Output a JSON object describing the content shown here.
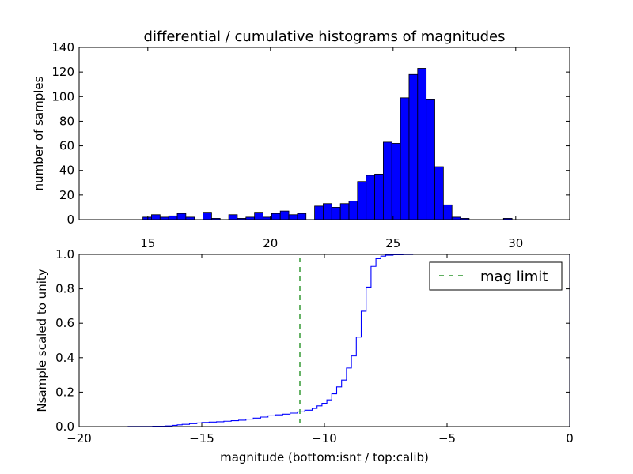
{
  "chart_data": [
    {
      "type": "bar",
      "title": "differential / cumulative histograms of magnitudes",
      "xlabel": "",
      "ylabel": "number of samples",
      "xlim": [
        12.2,
        32.2
      ],
      "ylim": [
        0,
        140
      ],
      "xticks": [
        "15",
        "20",
        "25",
        "30"
      ],
      "yticks": [
        "0",
        "20",
        "40",
        "60",
        "80",
        "100",
        "120",
        "140"
      ],
      "bar_color": "#0000ff",
      "bin_width": 0.35,
      "bins": [
        {
          "x": 14.8,
          "y": 2
        },
        {
          "x": 15.15,
          "y": 4
        },
        {
          "x": 15.5,
          "y": 2
        },
        {
          "x": 15.85,
          "y": 3
        },
        {
          "x": 16.2,
          "y": 5
        },
        {
          "x": 16.55,
          "y": 2
        },
        {
          "x": 17.25,
          "y": 6
        },
        {
          "x": 17.6,
          "y": 1
        },
        {
          "x": 18.3,
          "y": 4
        },
        {
          "x": 18.65,
          "y": 1
        },
        {
          "x": 19.0,
          "y": 2
        },
        {
          "x": 19.35,
          "y": 6
        },
        {
          "x": 19.7,
          "y": 2
        },
        {
          "x": 20.05,
          "y": 5
        },
        {
          "x": 20.4,
          "y": 7
        },
        {
          "x": 20.75,
          "y": 4
        },
        {
          "x": 21.1,
          "y": 5
        },
        {
          "x": 21.8,
          "y": 11
        },
        {
          "x": 22.15,
          "y": 13
        },
        {
          "x": 22.5,
          "y": 10
        },
        {
          "x": 22.85,
          "y": 13
        },
        {
          "x": 23.2,
          "y": 15
        },
        {
          "x": 23.55,
          "y": 31
        },
        {
          "x": 23.9,
          "y": 36
        },
        {
          "x": 24.25,
          "y": 37
        },
        {
          "x": 24.6,
          "y": 63
        },
        {
          "x": 24.95,
          "y": 62
        },
        {
          "x": 25.3,
          "y": 99
        },
        {
          "x": 25.65,
          "y": 118
        },
        {
          "x": 26.0,
          "y": 123
        },
        {
          "x": 26.35,
          "y": 98
        },
        {
          "x": 26.7,
          "y": 43
        },
        {
          "x": 27.05,
          "y": 12
        },
        {
          "x": 27.4,
          "y": 2
        },
        {
          "x": 27.75,
          "y": 1
        },
        {
          "x": 29.5,
          "y": 1
        }
      ]
    },
    {
      "type": "line",
      "xlabel": "magnitude (bottom:isnt / top:calib)",
      "ylabel": "Nsample scaled to unity",
      "xlim": [
        -20,
        0
      ],
      "ylim": [
        0.0,
        1.0
      ],
      "xticks": [
        "−20",
        "−15",
        "−10",
        "−5",
        "0"
      ],
      "yticks": [
        "0.0",
        "0.2",
        "0.4",
        "0.6",
        "0.8",
        "1.0"
      ],
      "line_color": "#0000ff",
      "limit_color": "#008000",
      "legend": {
        "entries": [
          "mag limit"
        ],
        "position": "upper right"
      },
      "mag_limit": -11.0,
      "series": [
        {
          "name": "",
          "x": [
            -20,
            -18.0,
            -17.0,
            -16.5,
            -16.2,
            -16.0,
            -15.8,
            -15.5,
            -15.2,
            -15.0,
            -14.7,
            -14.4,
            -14.1,
            -13.8,
            -13.5,
            -13.2,
            -12.9,
            -12.6,
            -12.3,
            -12.0,
            -11.7,
            -11.4,
            -11.1,
            -10.8,
            -10.5,
            -10.3,
            -10.1,
            -9.9,
            -9.7,
            -9.5,
            -9.3,
            -9.1,
            -8.9,
            -8.7,
            -8.5,
            -8.3,
            -8.1,
            -7.9,
            -7.7,
            -7.5,
            -7.2,
            -6.8,
            -6.4,
            -6.0,
            -0.05,
            0
          ],
          "y": [
            0.0,
            0.001,
            0.002,
            0.004,
            0.007,
            0.01,
            0.013,
            0.017,
            0.021,
            0.024,
            0.026,
            0.028,
            0.031,
            0.034,
            0.037,
            0.043,
            0.049,
            0.055,
            0.062,
            0.068,
            0.072,
            0.078,
            0.085,
            0.095,
            0.105,
            0.12,
            0.135,
            0.155,
            0.19,
            0.23,
            0.27,
            0.34,
            0.41,
            0.52,
            0.67,
            0.81,
            0.93,
            0.975,
            0.99,
            0.995,
            0.998,
            0.999,
            1.0,
            1.0,
            1.0,
            1.0
          ]
        }
      ]
    }
  ]
}
